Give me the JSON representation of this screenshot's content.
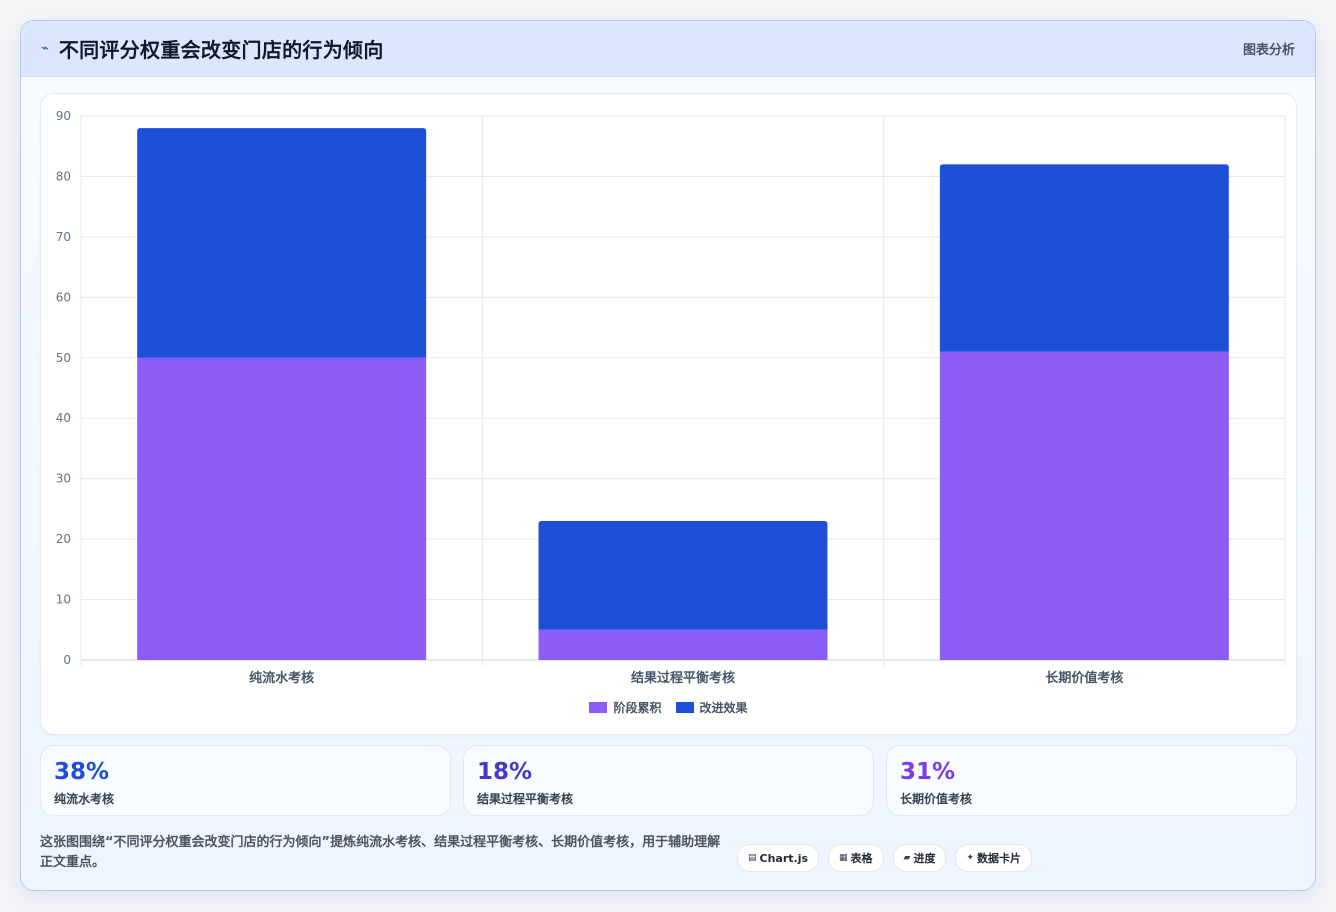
{
  "header": {
    "icon": "chart-wave-icon",
    "title": "不同评分权重会改变门店的行为倾向",
    "link": "图表分析"
  },
  "chart_data": {
    "type": "bar",
    "stacked": true,
    "categories": [
      "纯流水考核",
      "结果过程平衡考核",
      "长期价值考核"
    ],
    "series": [
      {
        "name": "阶段累积",
        "values": [
          50,
          5,
          51
        ],
        "color": "#8b5cf6"
      },
      {
        "name": "改进效果",
        "values": [
          38,
          18,
          31
        ],
        "color": "#1d4fd7"
      }
    ],
    "ylim": [
      0,
      90
    ],
    "yticks": [
      0,
      10,
      20,
      30,
      40,
      50,
      60,
      70,
      80,
      90
    ],
    "grid": true,
    "legend_position": "bottom"
  },
  "stats": [
    {
      "value": "38%",
      "label": "纯流水考核",
      "color": "#1d4ed8"
    },
    {
      "value": "18%",
      "label": "结果过程平衡考核",
      "color": "#4338ca"
    },
    {
      "value": "31%",
      "label": "长期价值考核",
      "color": "#7c3aed"
    }
  ],
  "footer": {
    "text": "这张图围绕“不同评分权重会改变门店的行为倾向”提炼纯流水考核、结果过程平衡考核、长期价值考核，用于辅助理解正文重点。"
  },
  "chips": [
    {
      "icon": "chart-icon",
      "glyph": "▤",
      "label": "Chart.js"
    },
    {
      "icon": "table-icon",
      "glyph": "▦",
      "label": "表格"
    },
    {
      "icon": "progress-icon",
      "glyph": "▰",
      "label": "进度"
    },
    {
      "icon": "card-icon",
      "glyph": "✦",
      "label": "数据卡片"
    }
  ]
}
